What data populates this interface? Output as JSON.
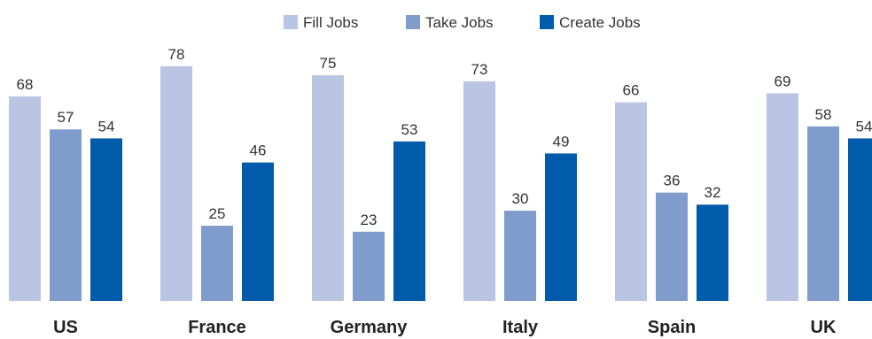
{
  "chart_data": {
    "type": "bar",
    "categories": [
      "US",
      "France",
      "Germany",
      "Italy",
      "Spain",
      "UK"
    ],
    "series": [
      {
        "name": "Fill Jobs",
        "values": [
          68,
          78,
          75,
          73,
          66,
          69
        ],
        "color": "#bac5e3"
      },
      {
        "name": "Take Jobs",
        "values": [
          57,
          25,
          23,
          30,
          36,
          58
        ],
        "color": "#7f9ccd"
      },
      {
        "name": "Create Jobs",
        "values": [
          54,
          46,
          53,
          49,
          32,
          54
        ],
        "color": "#005baa"
      }
    ],
    "ylim": [
      0,
      100
    ],
    "grid": false,
    "legend": "top-center"
  }
}
